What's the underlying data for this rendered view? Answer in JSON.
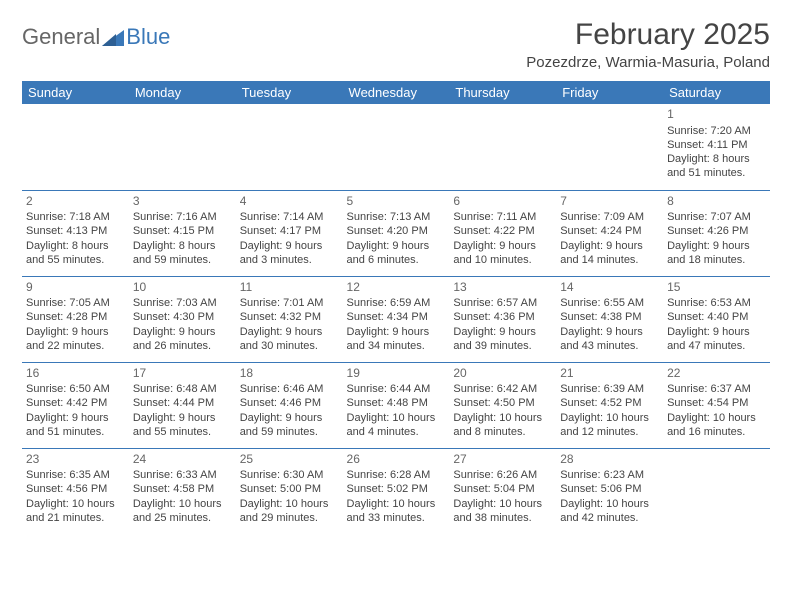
{
  "logo": {
    "text1": "General",
    "text2": "Blue"
  },
  "title": "February 2025",
  "location": "Pozezdrze, Warmia-Masuria, Poland",
  "header_bg": "#3a78b8",
  "weekdays": [
    "Sunday",
    "Monday",
    "Tuesday",
    "Wednesday",
    "Thursday",
    "Friday",
    "Saturday"
  ],
  "grid": [
    [
      null,
      null,
      null,
      null,
      null,
      null,
      {
        "n": "1",
        "sr": "Sunrise: 7:20 AM",
        "ss": "Sunset: 4:11 PM",
        "dl": "Daylight: 8 hours and 51 minutes."
      }
    ],
    [
      {
        "n": "2",
        "sr": "Sunrise: 7:18 AM",
        "ss": "Sunset: 4:13 PM",
        "dl": "Daylight: 8 hours and 55 minutes."
      },
      {
        "n": "3",
        "sr": "Sunrise: 7:16 AM",
        "ss": "Sunset: 4:15 PM",
        "dl": "Daylight: 8 hours and 59 minutes."
      },
      {
        "n": "4",
        "sr": "Sunrise: 7:14 AM",
        "ss": "Sunset: 4:17 PM",
        "dl": "Daylight: 9 hours and 3 minutes."
      },
      {
        "n": "5",
        "sr": "Sunrise: 7:13 AM",
        "ss": "Sunset: 4:20 PM",
        "dl": "Daylight: 9 hours and 6 minutes."
      },
      {
        "n": "6",
        "sr": "Sunrise: 7:11 AM",
        "ss": "Sunset: 4:22 PM",
        "dl": "Daylight: 9 hours and 10 minutes."
      },
      {
        "n": "7",
        "sr": "Sunrise: 7:09 AM",
        "ss": "Sunset: 4:24 PM",
        "dl": "Daylight: 9 hours and 14 minutes."
      },
      {
        "n": "8",
        "sr": "Sunrise: 7:07 AM",
        "ss": "Sunset: 4:26 PM",
        "dl": "Daylight: 9 hours and 18 minutes."
      }
    ],
    [
      {
        "n": "9",
        "sr": "Sunrise: 7:05 AM",
        "ss": "Sunset: 4:28 PM",
        "dl": "Daylight: 9 hours and 22 minutes."
      },
      {
        "n": "10",
        "sr": "Sunrise: 7:03 AM",
        "ss": "Sunset: 4:30 PM",
        "dl": "Daylight: 9 hours and 26 minutes."
      },
      {
        "n": "11",
        "sr": "Sunrise: 7:01 AM",
        "ss": "Sunset: 4:32 PM",
        "dl": "Daylight: 9 hours and 30 minutes."
      },
      {
        "n": "12",
        "sr": "Sunrise: 6:59 AM",
        "ss": "Sunset: 4:34 PM",
        "dl": "Daylight: 9 hours and 34 minutes."
      },
      {
        "n": "13",
        "sr": "Sunrise: 6:57 AM",
        "ss": "Sunset: 4:36 PM",
        "dl": "Daylight: 9 hours and 39 minutes."
      },
      {
        "n": "14",
        "sr": "Sunrise: 6:55 AM",
        "ss": "Sunset: 4:38 PM",
        "dl": "Daylight: 9 hours and 43 minutes."
      },
      {
        "n": "15",
        "sr": "Sunrise: 6:53 AM",
        "ss": "Sunset: 4:40 PM",
        "dl": "Daylight: 9 hours and 47 minutes."
      }
    ],
    [
      {
        "n": "16",
        "sr": "Sunrise: 6:50 AM",
        "ss": "Sunset: 4:42 PM",
        "dl": "Daylight: 9 hours and 51 minutes."
      },
      {
        "n": "17",
        "sr": "Sunrise: 6:48 AM",
        "ss": "Sunset: 4:44 PM",
        "dl": "Daylight: 9 hours and 55 minutes."
      },
      {
        "n": "18",
        "sr": "Sunrise: 6:46 AM",
        "ss": "Sunset: 4:46 PM",
        "dl": "Daylight: 9 hours and 59 minutes."
      },
      {
        "n": "19",
        "sr": "Sunrise: 6:44 AM",
        "ss": "Sunset: 4:48 PM",
        "dl": "Daylight: 10 hours and 4 minutes."
      },
      {
        "n": "20",
        "sr": "Sunrise: 6:42 AM",
        "ss": "Sunset: 4:50 PM",
        "dl": "Daylight: 10 hours and 8 minutes."
      },
      {
        "n": "21",
        "sr": "Sunrise: 6:39 AM",
        "ss": "Sunset: 4:52 PM",
        "dl": "Daylight: 10 hours and 12 minutes."
      },
      {
        "n": "22",
        "sr": "Sunrise: 6:37 AM",
        "ss": "Sunset: 4:54 PM",
        "dl": "Daylight: 10 hours and 16 minutes."
      }
    ],
    [
      {
        "n": "23",
        "sr": "Sunrise: 6:35 AM",
        "ss": "Sunset: 4:56 PM",
        "dl": "Daylight: 10 hours and 21 minutes."
      },
      {
        "n": "24",
        "sr": "Sunrise: 6:33 AM",
        "ss": "Sunset: 4:58 PM",
        "dl": "Daylight: 10 hours and 25 minutes."
      },
      {
        "n": "25",
        "sr": "Sunrise: 6:30 AM",
        "ss": "Sunset: 5:00 PM",
        "dl": "Daylight: 10 hours and 29 minutes."
      },
      {
        "n": "26",
        "sr": "Sunrise: 6:28 AM",
        "ss": "Sunset: 5:02 PM",
        "dl": "Daylight: 10 hours and 33 minutes."
      },
      {
        "n": "27",
        "sr": "Sunrise: 6:26 AM",
        "ss": "Sunset: 5:04 PM",
        "dl": "Daylight: 10 hours and 38 minutes."
      },
      {
        "n": "28",
        "sr": "Sunrise: 6:23 AM",
        "ss": "Sunset: 5:06 PM",
        "dl": "Daylight: 10 hours and 42 minutes."
      },
      null
    ]
  ]
}
